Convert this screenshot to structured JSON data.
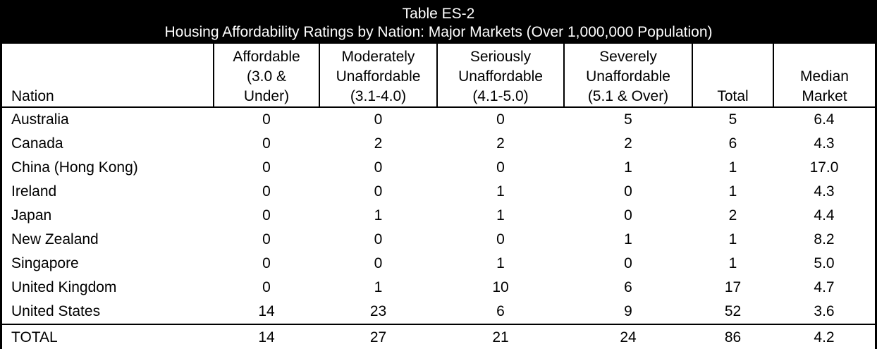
{
  "table": {
    "title_line1": "Table ES-2",
    "title_line2": "Housing Affordability Ratings by Nation: Major Markets (Over 1,000,000 Population)",
    "columns": [
      "Nation",
      "Affordable\n(3.0 &\nUnder)",
      "Moderately\nUnaffordable\n(3.1-4.0)",
      "Seriously\nUnaffordable\n(4.1-5.0)",
      "Severely\nUnaffordable\n(5.1 & Over)",
      "Total",
      "Median\nMarket"
    ],
    "rows": [
      {
        "nation": "Australia",
        "cells": [
          "0",
          "0",
          "0",
          "5",
          "5",
          "6.4"
        ]
      },
      {
        "nation": "Canada",
        "cells": [
          "0",
          "2",
          "2",
          "2",
          "6",
          "4.3"
        ]
      },
      {
        "nation": "China (Hong Kong)",
        "cells": [
          "0",
          "0",
          "0",
          "1",
          "1",
          "17.0"
        ]
      },
      {
        "nation": "Ireland",
        "cells": [
          "0",
          "0",
          "1",
          "0",
          "1",
          "4.3"
        ]
      },
      {
        "nation": "Japan",
        "cells": [
          "0",
          "1",
          "1",
          "0",
          "2",
          "4.4"
        ]
      },
      {
        "nation": "New Zealand",
        "cells": [
          "0",
          "0",
          "0",
          "1",
          "1",
          "8.2"
        ]
      },
      {
        "nation": "Singapore",
        "cells": [
          "0",
          "0",
          "1",
          "0",
          "1",
          "5.0"
        ]
      },
      {
        "nation": "United Kingdom",
        "cells": [
          "0",
          "1",
          "10",
          "6",
          "17",
          "4.7"
        ]
      },
      {
        "nation": "United States",
        "cells": [
          "14",
          "23",
          "6",
          "9",
          "52",
          "3.6"
        ]
      }
    ],
    "total_row": {
      "nation": "TOTAL",
      "cells": [
        "14",
        "27",
        "21",
        "24",
        "86",
        "4.2"
      ]
    },
    "colors": {
      "band_background": "#000000",
      "band_text": "#ffffff",
      "table_text": "#000000",
      "table_background": "#ffffff",
      "border": "#000000"
    }
  },
  "chart_data": {
    "type": "table",
    "title": "Table ES-2 — Housing Affordability Ratings by Nation: Major Markets (Over 1,000,000 Population)",
    "categories": [
      "Australia",
      "Canada",
      "China (Hong Kong)",
      "Ireland",
      "Japan",
      "New Zealand",
      "Singapore",
      "United Kingdom",
      "United States",
      "TOTAL"
    ],
    "series": [
      {
        "name": "Affordable (3.0 & Under)",
        "values": [
          0,
          0,
          0,
          0,
          0,
          0,
          0,
          0,
          14,
          14
        ]
      },
      {
        "name": "Moderately Unaffordable (3.1-4.0)",
        "values": [
          0,
          2,
          0,
          0,
          1,
          0,
          0,
          1,
          23,
          27
        ]
      },
      {
        "name": "Seriously Unaffordable (4.1-5.0)",
        "values": [
          0,
          2,
          0,
          1,
          1,
          0,
          1,
          10,
          6,
          21
        ]
      },
      {
        "name": "Severely Unaffordable (5.1 & Over)",
        "values": [
          5,
          2,
          1,
          0,
          0,
          1,
          0,
          6,
          9,
          24
        ]
      },
      {
        "name": "Total",
        "values": [
          5,
          6,
          1,
          1,
          2,
          1,
          1,
          17,
          52,
          86
        ]
      },
      {
        "name": "Median Market",
        "values": [
          6.4,
          4.3,
          17.0,
          4.3,
          4.4,
          8.2,
          5.0,
          4.7,
          3.6,
          4.2
        ]
      }
    ]
  }
}
